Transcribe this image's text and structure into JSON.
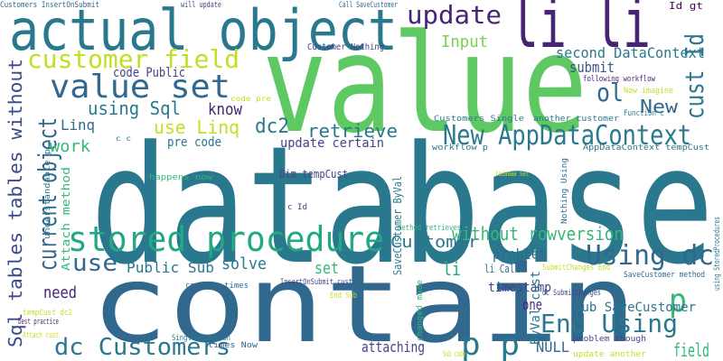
{
  "words": [
    "database",
    "value",
    "contain",
    "actual object",
    "li li",
    "update",
    "customer field",
    "value set",
    "Input",
    "second DataContext",
    "Id gt",
    "cust Id",
    "submit",
    "code Public",
    "ol",
    "know",
    "using Sql",
    "New",
    "dc2",
    "retrieve",
    "New AppDataContext",
    "use Linq",
    "Linq",
    "current object",
    "Sql tables tables without",
    "work",
    "pre code",
    "update certain",
    "Dim tempCust",
    "stored procedure",
    "use",
    "Public Sub",
    "solve",
    "set",
    "need",
    "Customer",
    "without rowversion",
    "Using dc",
    "problem",
    "timestamp",
    "p",
    "li",
    "li Call",
    "one",
    "End Using",
    "p p",
    "NULL",
    "field",
    "dc Customers",
    "attaching",
    "Sub SaveCustomer",
    "problem though",
    "update another",
    "Customers InsertOnSubmit",
    "will update",
    "Call SaveCustomer",
    "Customer Nothing",
    "following workflow",
    "Now imagine",
    "Function c",
    "another customer",
    "Customers Single",
    "code pre",
    "c c",
    "workflow p",
    "AppDataContext tempCust",
    "happens now",
    "tadaaaa set",
    "c Id",
    "method retrieves",
    "certain times",
    "InsertOnSubmit cust",
    "SubmitChanges End",
    "SaveCustomer method",
    "dc SubmitChanges",
    "End Sub",
    "tempCust dc2",
    "best practice",
    "Single Function",
    "Attach cust",
    "times Now",
    "Sub code",
    "understandable p",
    "Attach method",
    "SaveCustomer ByVal",
    "changed made",
    "ByVal cust",
    "Nothing Using",
    "using StoredProcedures"
  ]
}
